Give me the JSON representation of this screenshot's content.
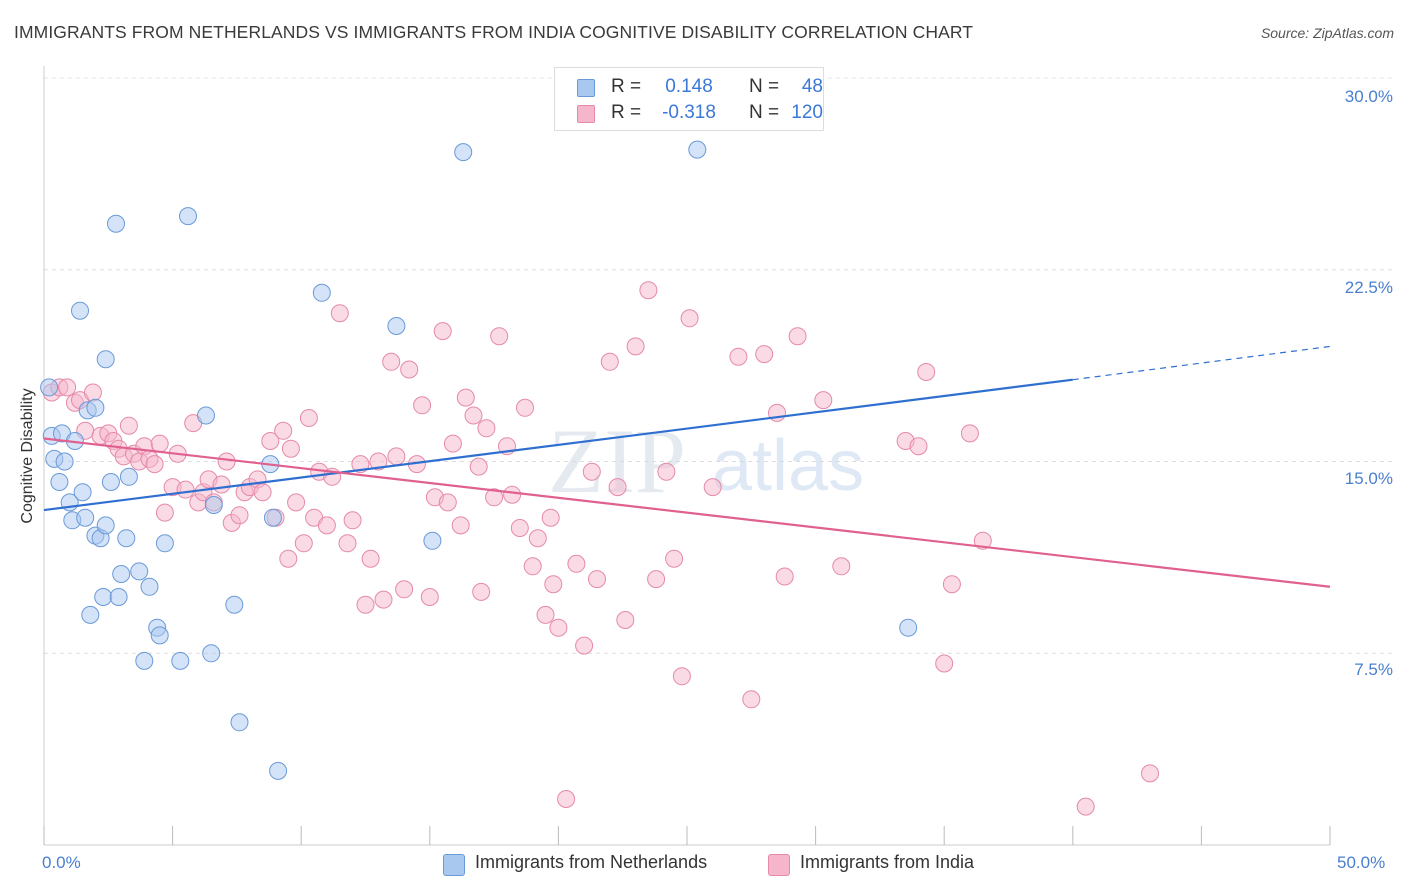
{
  "title": "IMMIGRANTS FROM NETHERLANDS VS IMMIGRANTS FROM INDIA COGNITIVE DISABILITY CORRELATION CHART",
  "source": "Source: ZipAtlas.com",
  "watermark": {
    "zip": "ZIP",
    "atlas": "atlas"
  },
  "colors": {
    "netherlands_fill": "#a9c8f0",
    "netherlands_stroke": "#6a9ad8",
    "netherlands_line": "#2f6fd0",
    "india_fill": "#f5b5cb",
    "india_stroke": "#e58aa9",
    "india_line": "#e0608f",
    "axis_label": "#4a7fd0"
  },
  "stats": [
    {
      "series": "Immigrants from Netherlands",
      "r_label": "R =",
      "r": "0.148",
      "n_label": "N =",
      "n": "48"
    },
    {
      "series": "Immigrants from India",
      "r_label": "R =",
      "r": "-0.318",
      "n_label": "N =",
      "n": "120"
    }
  ],
  "legend": {
    "netherlands": "Immigrants from Netherlands",
    "india": "Immigrants from India"
  },
  "axis": {
    "y_title": "Cognitive Disability",
    "y_ticks": [
      "30.0%",
      "22.5%",
      "15.0%",
      "7.5%"
    ],
    "x_left": "0.0%",
    "x_right": "50.0%"
  },
  "chart_data": {
    "type": "scatter",
    "title": "IMMIGRANTS FROM NETHERLANDS VS IMMIGRANTS FROM INDIA COGNITIVE DISABILITY CORRELATION CHART",
    "xlabel": "",
    "ylabel": "Cognitive Disability",
    "xlim": [
      0,
      50
    ],
    "ylim": [
      0,
      30
    ],
    "y_tick_values": [
      7.5,
      15.0,
      22.5,
      30.0
    ],
    "x_tick_values": [
      0,
      5,
      10,
      15,
      20,
      25,
      30,
      35,
      40,
      45,
      50
    ],
    "grid": true,
    "series": [
      {
        "name": "Immigrants from Netherlands",
        "r": 0.148,
        "n": 48,
        "trend": {
          "x0": 0,
          "y0": 13.1,
          "x1": 40,
          "y1": 18.2,
          "dashed_to_x": 50,
          "dashed_to_y": 19.5
        },
        "points": [
          [
            0.2,
            17.9
          ],
          [
            0.3,
            16.0
          ],
          [
            0.4,
            15.1
          ],
          [
            0.6,
            14.2
          ],
          [
            0.7,
            16.1
          ],
          [
            0.8,
            15.0
          ],
          [
            1.0,
            13.4
          ],
          [
            1.1,
            12.7
          ],
          [
            1.2,
            15.8
          ],
          [
            1.4,
            20.9
          ],
          [
            1.5,
            13.8
          ],
          [
            1.6,
            12.8
          ],
          [
            1.7,
            17.0
          ],
          [
            1.8,
            9.0
          ],
          [
            2.0,
            17.1
          ],
          [
            2.0,
            12.1
          ],
          [
            2.2,
            12.0
          ],
          [
            2.3,
            9.7
          ],
          [
            2.4,
            12.5
          ],
          [
            2.4,
            19.0
          ],
          [
            2.6,
            14.2
          ],
          [
            2.8,
            24.3
          ],
          [
            2.9,
            9.7
          ],
          [
            3.0,
            10.6
          ],
          [
            3.2,
            12.0
          ],
          [
            3.3,
            14.4
          ],
          [
            3.7,
            10.7
          ],
          [
            3.9,
            7.2
          ],
          [
            4.1,
            10.1
          ],
          [
            4.4,
            8.5
          ],
          [
            4.5,
            8.2
          ],
          [
            4.7,
            11.8
          ],
          [
            5.3,
            7.2
          ],
          [
            5.6,
            24.6
          ],
          [
            6.3,
            16.8
          ],
          [
            6.5,
            7.5
          ],
          [
            6.6,
            13.3
          ],
          [
            7.4,
            9.4
          ],
          [
            7.6,
            4.8
          ],
          [
            8.8,
            14.9
          ],
          [
            8.9,
            12.8
          ],
          [
            9.1,
            2.9
          ],
          [
            10.8,
            21.6
          ],
          [
            13.7,
            20.3
          ],
          [
            15.1,
            11.9
          ],
          [
            16.3,
            27.1
          ],
          [
            25.4,
            27.2
          ],
          [
            33.6,
            8.5
          ]
        ]
      },
      {
        "name": "Immigrants from India",
        "r": -0.318,
        "n": 120,
        "trend": {
          "x0": 0,
          "y0": 15.9,
          "x1": 50,
          "y1": 10.1
        },
        "points": [
          [
            0.3,
            17.7
          ],
          [
            0.6,
            17.9
          ],
          [
            0.9,
            17.9
          ],
          [
            1.2,
            17.3
          ],
          [
            1.4,
            17.4
          ],
          [
            1.6,
            16.2
          ],
          [
            1.9,
            17.7
          ],
          [
            2.2,
            16.0
          ],
          [
            2.5,
            16.1
          ],
          [
            2.7,
            15.8
          ],
          [
            2.9,
            15.5
          ],
          [
            3.1,
            15.2
          ],
          [
            3.3,
            16.4
          ],
          [
            3.5,
            15.3
          ],
          [
            3.7,
            15.0
          ],
          [
            3.9,
            15.6
          ],
          [
            4.1,
            15.1
          ],
          [
            4.3,
            14.9
          ],
          [
            4.5,
            15.7
          ],
          [
            4.7,
            13.0
          ],
          [
            5.0,
            14.0
          ],
          [
            5.2,
            15.3
          ],
          [
            5.5,
            13.9
          ],
          [
            5.8,
            16.5
          ],
          [
            6.0,
            13.4
          ],
          [
            6.2,
            13.8
          ],
          [
            6.4,
            14.3
          ],
          [
            6.6,
            13.4
          ],
          [
            6.9,
            14.1
          ],
          [
            7.1,
            15.0
          ],
          [
            7.3,
            12.6
          ],
          [
            7.6,
            12.9
          ],
          [
            7.8,
            13.8
          ],
          [
            8.0,
            14.0
          ],
          [
            8.3,
            14.3
          ],
          [
            8.5,
            13.8
          ],
          [
            8.8,
            15.8
          ],
          [
            9.0,
            12.8
          ],
          [
            9.3,
            16.2
          ],
          [
            9.6,
            15.5
          ],
          [
            9.8,
            13.4
          ],
          [
            10.1,
            11.8
          ],
          [
            10.3,
            16.7
          ],
          [
            10.5,
            12.8
          ],
          [
            10.7,
            14.6
          ],
          [
            11.0,
            12.5
          ],
          [
            11.2,
            14.4
          ],
          [
            11.5,
            20.8
          ],
          [
            11.8,
            11.8
          ],
          [
            12.0,
            12.7
          ],
          [
            12.3,
            14.9
          ],
          [
            12.5,
            9.4
          ],
          [
            12.7,
            11.2
          ],
          [
            13.0,
            15.0
          ],
          [
            13.2,
            9.6
          ],
          [
            13.5,
            18.9
          ],
          [
            13.7,
            15.2
          ],
          [
            14.0,
            10.0
          ],
          [
            14.2,
            18.6
          ],
          [
            14.5,
            14.9
          ],
          [
            14.7,
            17.2
          ],
          [
            15.0,
            9.7
          ],
          [
            15.2,
            13.6
          ],
          [
            15.5,
            20.1
          ],
          [
            15.7,
            13.4
          ],
          [
            15.9,
            15.7
          ],
          [
            16.2,
            12.5
          ],
          [
            16.4,
            17.5
          ],
          [
            16.7,
            16.8
          ],
          [
            16.9,
            14.8
          ],
          [
            17.2,
            16.3
          ],
          [
            17.5,
            13.6
          ],
          [
            17.7,
            19.9
          ],
          [
            18.0,
            15.6
          ],
          [
            18.2,
            13.7
          ],
          [
            18.5,
            12.4
          ],
          [
            18.7,
            17.1
          ],
          [
            19.0,
            10.9
          ],
          [
            19.2,
            12.0
          ],
          [
            19.5,
            9.0
          ],
          [
            19.7,
            12.8
          ],
          [
            20.0,
            8.5
          ],
          [
            20.3,
            1.8
          ],
          [
            20.7,
            11.0
          ],
          [
            21.0,
            7.8
          ],
          [
            21.3,
            14.6
          ],
          [
            21.5,
            10.4
          ],
          [
            22.0,
            18.9
          ],
          [
            22.3,
            14.0
          ],
          [
            22.6,
            8.8
          ],
          [
            23.0,
            19.5
          ],
          [
            23.5,
            21.7
          ],
          [
            23.8,
            10.4
          ],
          [
            24.2,
            14.6
          ],
          [
            24.5,
            11.2
          ],
          [
            24.8,
            6.6
          ],
          [
            25.1,
            20.6
          ],
          [
            26.0,
            14.0
          ],
          [
            27.0,
            19.1
          ],
          [
            27.5,
            5.7
          ],
          [
            28.0,
            19.2
          ],
          [
            28.5,
            16.9
          ],
          [
            28.8,
            10.5
          ],
          [
            29.3,
            19.9
          ],
          [
            30.3,
            17.4
          ],
          [
            31.0,
            10.9
          ],
          [
            33.5,
            15.8
          ],
          [
            34.0,
            15.6
          ],
          [
            34.3,
            18.5
          ],
          [
            35.0,
            7.1
          ],
          [
            35.3,
            10.2
          ],
          [
            36.0,
            16.1
          ],
          [
            36.5,
            11.9
          ],
          [
            40.5,
            1.5
          ],
          [
            43.0,
            2.8
          ],
          [
            19.8,
            10.2
          ],
          [
            17.0,
            9.9
          ],
          [
            9.5,
            11.2
          ]
        ]
      }
    ]
  }
}
